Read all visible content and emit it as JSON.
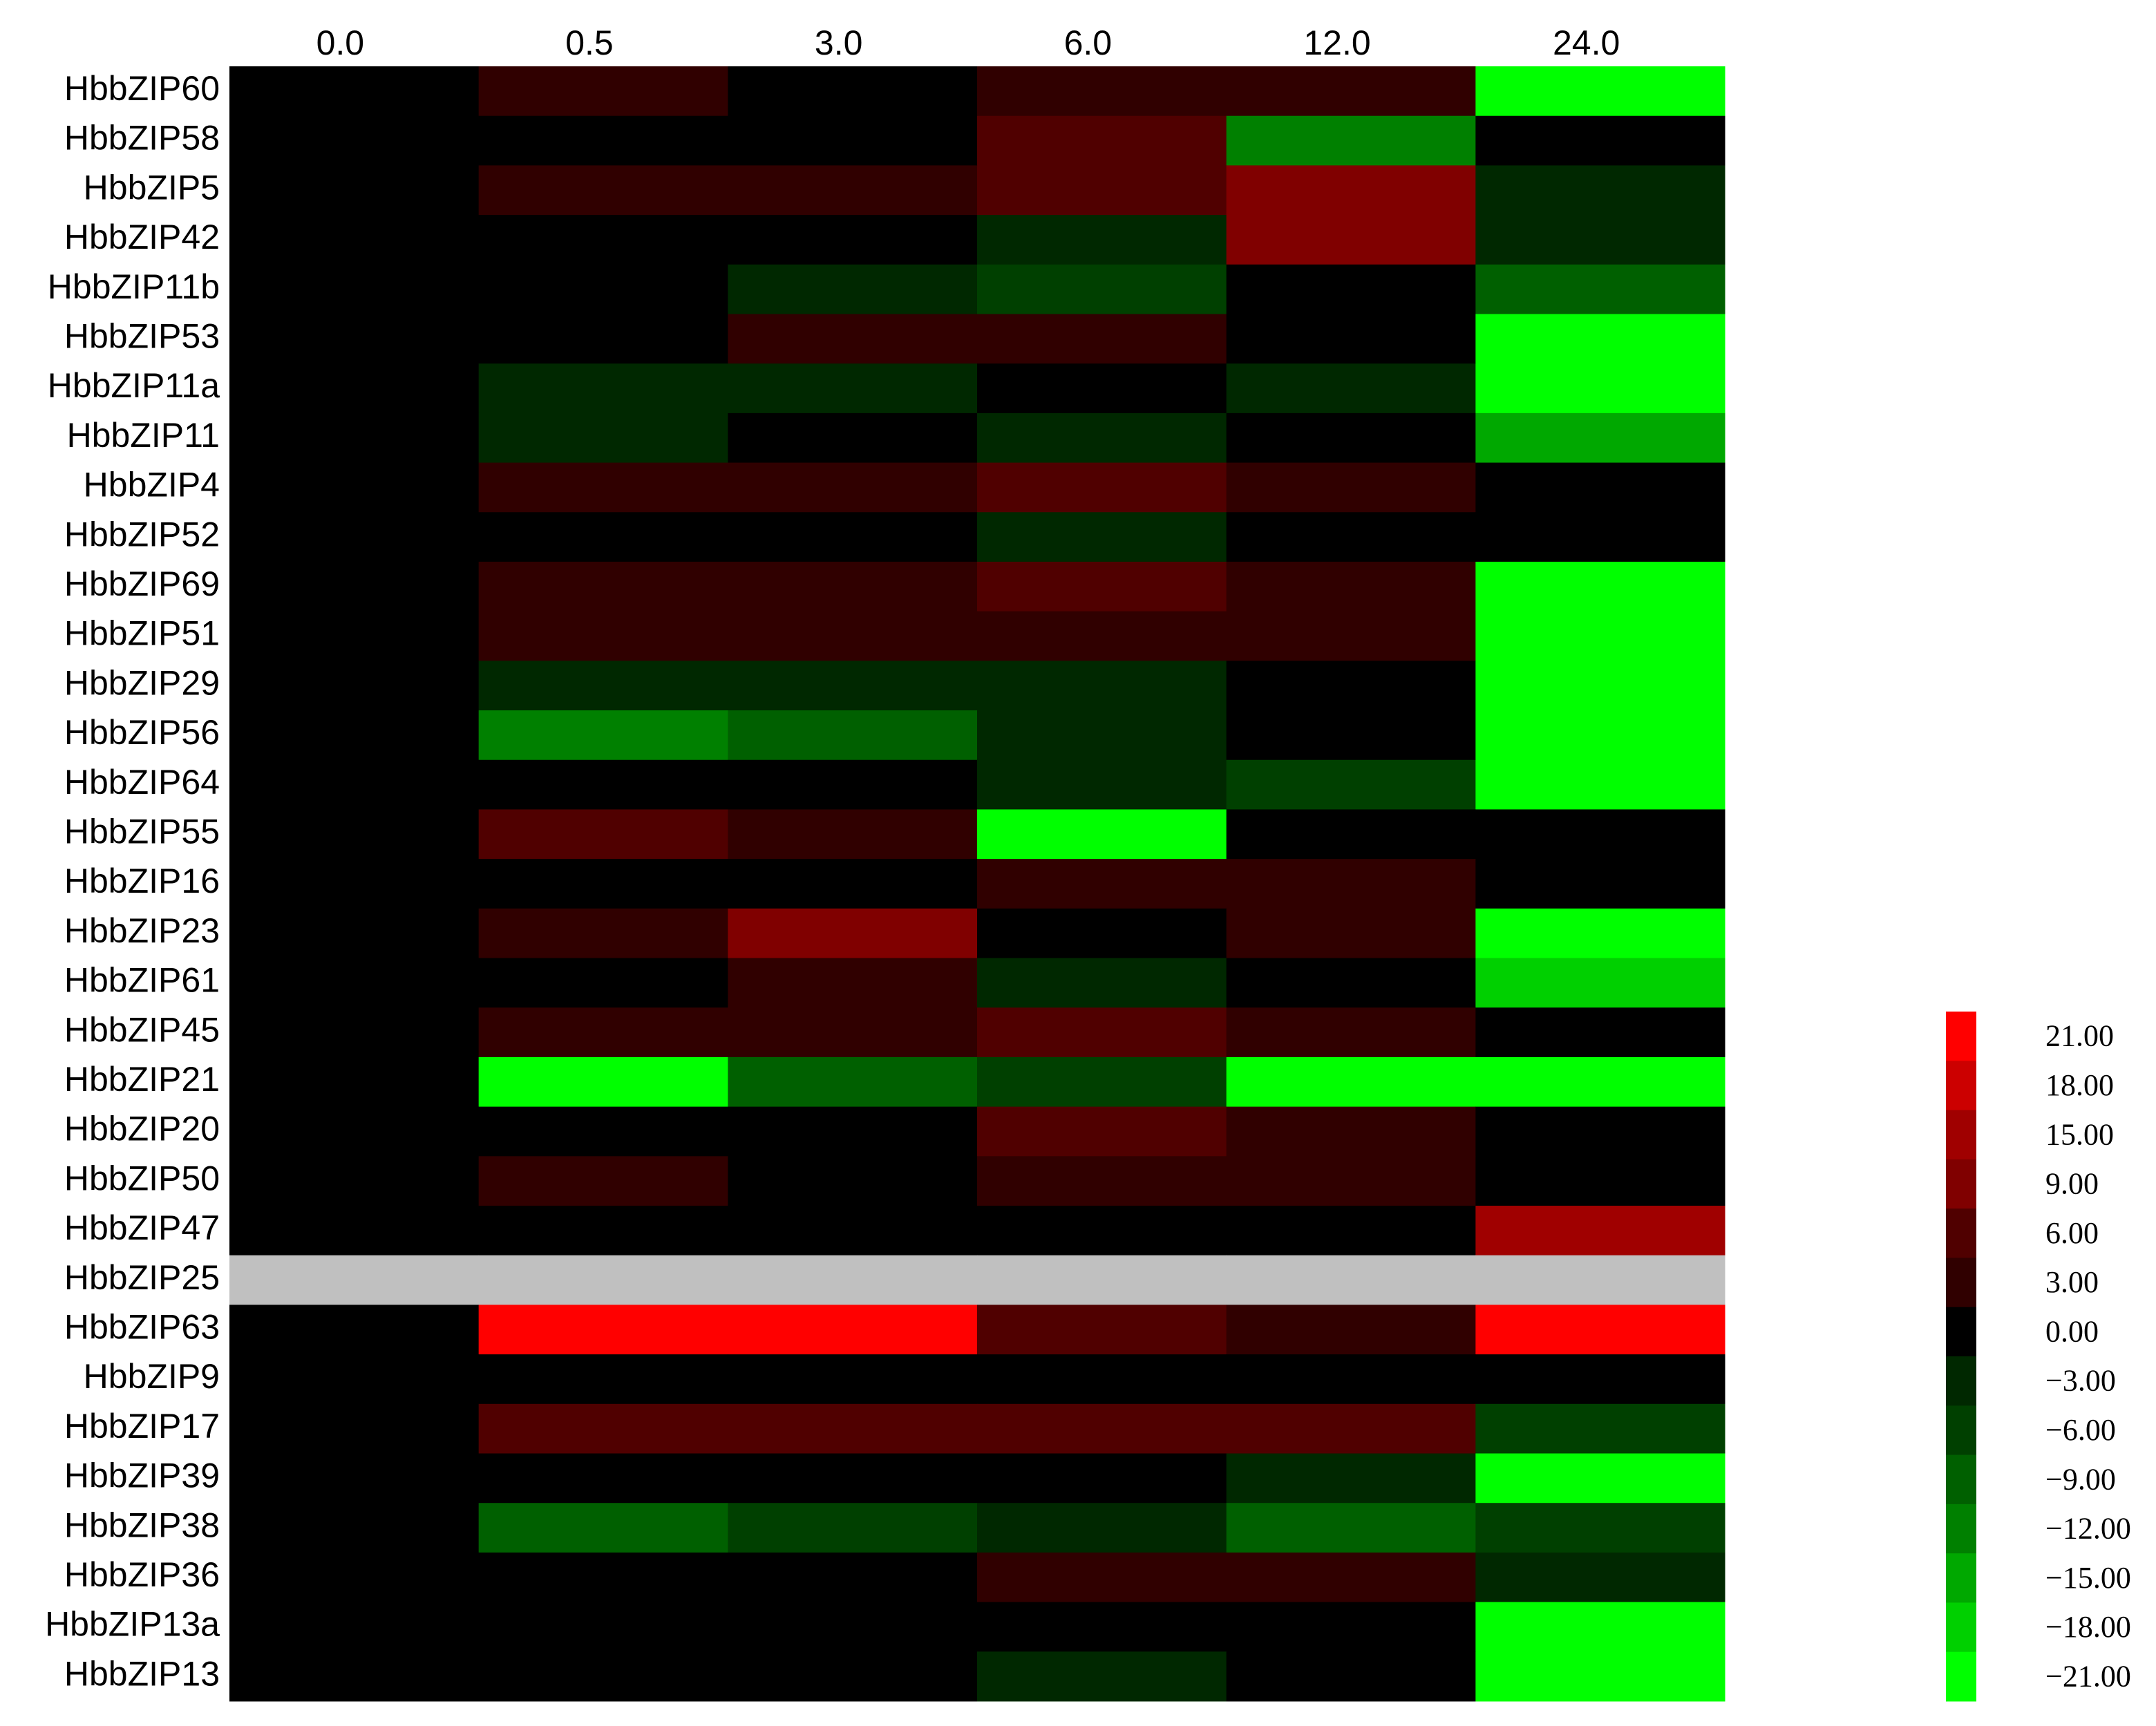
{
  "chart_data": {
    "type": "heatmap",
    "x": [
      "0.0",
      "0.5",
      "3.0",
      "6.0",
      "12.0",
      "24.0"
    ],
    "y": [
      "HbbZIP60",
      "HbbZIP58",
      "HbbZIP5",
      "HbbZIP42",
      "HbbZIP11b",
      "HbbZIP53",
      "HbbZIP11a",
      "HbbZIP11",
      "HbbZIP4",
      "HbbZIP52",
      "HbbZIP69",
      "HbbZIP51",
      "HbbZIP29",
      "HbbZIP56",
      "HbbZIP64",
      "HbbZIP55",
      "HbbZIP16",
      "HbbZIP23",
      "HbbZIP61",
      "HbbZIP45",
      "HbbZIP21",
      "HbbZIP20",
      "HbbZIP50",
      "HbbZIP47",
      "HbbZIP25",
      "HbbZIP63",
      "HbbZIP9",
      "HbbZIP17",
      "HbbZIP39",
      "HbbZIP38",
      "HbbZIP36",
      "HbbZIP13a",
      "HbbZIP13"
    ],
    "values": [
      [
        0,
        3,
        0,
        3,
        3,
        -21
      ],
      [
        0,
        0,
        0,
        6,
        -12,
        0
      ],
      [
        0,
        3,
        3,
        6,
        9,
        -3
      ],
      [
        0,
        0,
        0,
        -3,
        9,
        -3
      ],
      [
        0,
        0,
        -3,
        -6,
        0,
        -9
      ],
      [
        0,
        0,
        3,
        3,
        0,
        -21
      ],
      [
        0,
        -3,
        -3,
        0,
        -3,
        -21
      ],
      [
        0,
        -3,
        0,
        -3,
        0,
        -15
      ],
      [
        0,
        3,
        3,
        6,
        3,
        0
      ],
      [
        0,
        0,
        0,
        -3,
        0,
        0
      ],
      [
        0,
        3,
        3,
        6,
        3,
        -21
      ],
      [
        0,
        3,
        3,
        3,
        3,
        -21
      ],
      [
        0,
        -3,
        -3,
        -3,
        0,
        -21
      ],
      [
        0,
        -12,
        -9,
        -3,
        0,
        -21
      ],
      [
        0,
        0,
        0,
        -3,
        -6,
        -21
      ],
      [
        0,
        6,
        3,
        -21,
        0,
        0
      ],
      [
        0,
        0,
        0,
        3,
        3,
        0
      ],
      [
        0,
        3,
        9,
        0,
        3,
        -21
      ],
      [
        0,
        0,
        3,
        -3,
        0,
        -18
      ],
      [
        0,
        3,
        3,
        6,
        3,
        0
      ],
      [
        0,
        -21,
        -9,
        -6,
        -21,
        -21
      ],
      [
        0,
        0,
        0,
        6,
        3,
        0
      ],
      [
        0,
        3,
        0,
        3,
        3,
        0
      ],
      [
        0,
        0,
        0,
        0,
        0,
        15
      ],
      [
        null,
        null,
        null,
        null,
        null,
        null
      ],
      [
        0,
        21,
        21,
        6,
        3,
        21
      ],
      [
        0,
        0,
        0,
        0,
        0,
        0
      ],
      [
        0,
        6,
        6,
        6,
        6,
        -6
      ],
      [
        0,
        0,
        0,
        0,
        -3,
        -21
      ],
      [
        0,
        -9,
        -6,
        -3,
        -9,
        -6
      ],
      [
        0,
        0,
        0,
        3,
        3,
        -3
      ],
      [
        0,
        0,
        0,
        0,
        0,
        -21
      ],
      [
        0,
        0,
        0,
        -3,
        0,
        -21
      ]
    ],
    "missing_color": "#c0c0c0",
    "cticks": [
      {
        "value": 21,
        "label": "21.00"
      },
      {
        "value": 18,
        "label": "18.00"
      },
      {
        "value": 15,
        "label": "15.00"
      },
      {
        "value": 9,
        "label": "9.00"
      },
      {
        "value": 6,
        "label": "6.00"
      },
      {
        "value": 3,
        "label": "3.00"
      },
      {
        "value": 0,
        "label": "0.00"
      },
      {
        "value": -3,
        "label": "−3.00"
      },
      {
        "value": -6,
        "label": "−6.00"
      },
      {
        "value": -9,
        "label": "−9.00"
      },
      {
        "value": -12,
        "label": "−12.00"
      },
      {
        "value": -15,
        "label": "−15.00"
      },
      {
        "value": -18,
        "label": "−18.00"
      },
      {
        "value": -21,
        "label": "−21.00"
      }
    ],
    "ccolors": [
      "#ff0000",
      "#cc0000",
      "#a00000",
      "#800000",
      "#500000",
      "#300000",
      "#000000",
      "#002800",
      "#004000",
      "#006000",
      "#008000",
      "#00a800",
      "#00d000",
      "#00ff00"
    ]
  }
}
